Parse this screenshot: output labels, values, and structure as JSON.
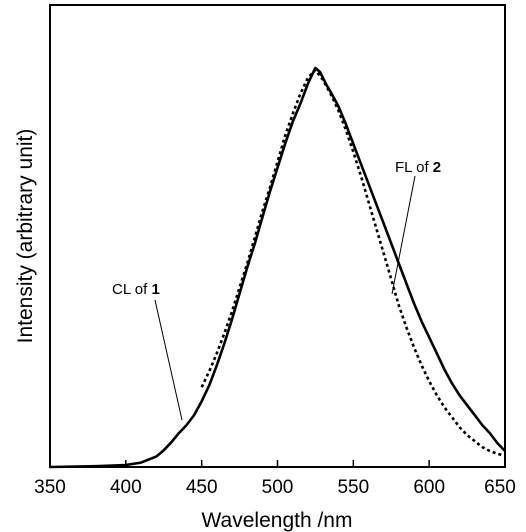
{
  "chart_data": {
    "type": "line",
    "title": "",
    "xlabel": "Wavelength /nm",
    "ylabel": "Intensity (arbitrary unit)",
    "xlim": [
      350,
      650
    ],
    "ylim": [
      0,
      1.04
    ],
    "x_ticks": [
      350,
      400,
      450,
      500,
      550,
      600,
      650
    ],
    "x_tick_labels": [
      "350",
      "400",
      "450",
      "500",
      "550",
      "600",
      "650"
    ],
    "y_ticks": [],
    "grid": false,
    "legend": "none",
    "series": [
      {
        "style": "solid",
        "color": "#000000",
        "x": [
          350,
          380,
          400,
          410,
          420,
          425,
          430,
          435,
          440,
          445,
          450,
          455,
          460,
          465,
          470,
          475,
          480,
          485,
          490,
          495,
          500,
          505,
          510,
          515,
          520,
          523,
          525,
          528,
          532,
          535,
          540,
          545,
          550,
          555,
          560,
          565,
          570,
          575,
          580,
          585,
          590,
          595,
          600,
          605,
          610,
          615,
          620,
          625,
          630,
          635,
          640,
          645,
          650
        ],
        "y": [
          0.0,
          0.002,
          0.005,
          0.011,
          0.026,
          0.042,
          0.062,
          0.085,
          0.105,
          0.13,
          0.165,
          0.205,
          0.255,
          0.31,
          0.37,
          0.435,
          0.5,
          0.56,
          0.625,
          0.69,
          0.75,
          0.81,
          0.865,
          0.91,
          0.96,
          0.985,
          1.0,
          0.99,
          0.96,
          0.94,
          0.905,
          0.86,
          0.81,
          0.76,
          0.71,
          0.66,
          0.61,
          0.56,
          0.51,
          0.46,
          0.41,
          0.365,
          0.325,
          0.285,
          0.245,
          0.21,
          0.18,
          0.155,
          0.13,
          0.105,
          0.085,
          0.06,
          0.04
        ]
      },
      {
        "style": "dotted",
        "color": "#000000",
        "x": [
          450,
          455,
          460,
          465,
          470,
          475,
          480,
          485,
          490,
          495,
          500,
          505,
          510,
          515,
          520,
          525,
          530,
          535,
          540,
          545,
          550,
          555,
          560,
          565,
          570,
          575,
          580,
          585,
          590,
          595,
          600,
          605,
          610,
          615,
          620,
          625,
          630,
          635,
          640,
          645,
          650
        ],
        "y": [
          0.2,
          0.24,
          0.285,
          0.335,
          0.39,
          0.45,
          0.51,
          0.575,
          0.64,
          0.7,
          0.765,
          0.83,
          0.885,
          0.935,
          0.975,
          0.995,
          0.97,
          0.935,
          0.895,
          0.845,
          0.79,
          0.73,
          0.665,
          0.6,
          0.535,
          0.47,
          0.405,
          0.35,
          0.3,
          0.255,
          0.215,
          0.18,
          0.15,
          0.125,
          0.1,
          0.08,
          0.065,
          0.05,
          0.04,
          0.033,
          0.028
        ]
      }
    ],
    "annotations": [
      {
        "text_prefix": "CL of ",
        "text_bold": "1",
        "target": "solid"
      },
      {
        "text_prefix": "FL of ",
        "text_bold": "2",
        "target": "dotted"
      }
    ]
  }
}
